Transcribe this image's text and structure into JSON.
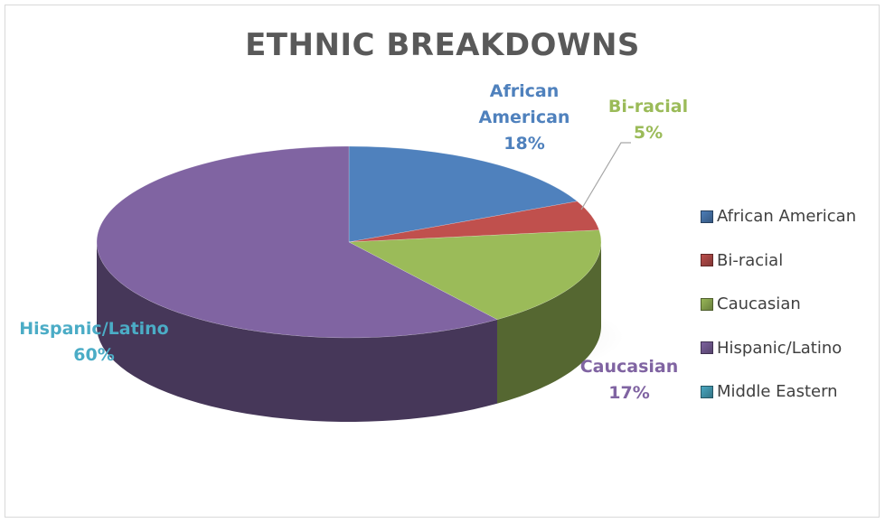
{
  "chart_data": {
    "type": "pie",
    "title": "ETHNIC BREAKDOWNS",
    "slices": [
      {
        "label": "African American",
        "percent": 18,
        "data_label": [
          "African",
          "American",
          "18%"
        ],
        "color": "#4f81bd",
        "label_color": "#4f81bd"
      },
      {
        "label": "Bi-racial",
        "percent": 5,
        "data_label": [
          "Bi-racial",
          "5%"
        ],
        "color": "#c0504d",
        "label_color": "#9bbb59"
      },
      {
        "label": "Caucasian",
        "percent": 17,
        "data_label": [
          "Caucasian",
          "17%"
        ],
        "color": "#9bbb59",
        "label_color": "#8064a2"
      },
      {
        "label": "Hispanic/Latino",
        "percent": 60,
        "data_label": [
          "Hispanic/Latino",
          "60%"
        ],
        "color": "#8064a2",
        "label_color": "#4bacc6"
      },
      {
        "label": "Middle Eastern",
        "percent": 0,
        "data_label": [],
        "color": "#4bacc6",
        "label_color": "#4bacc6"
      }
    ],
    "legend_position": "right"
  }
}
